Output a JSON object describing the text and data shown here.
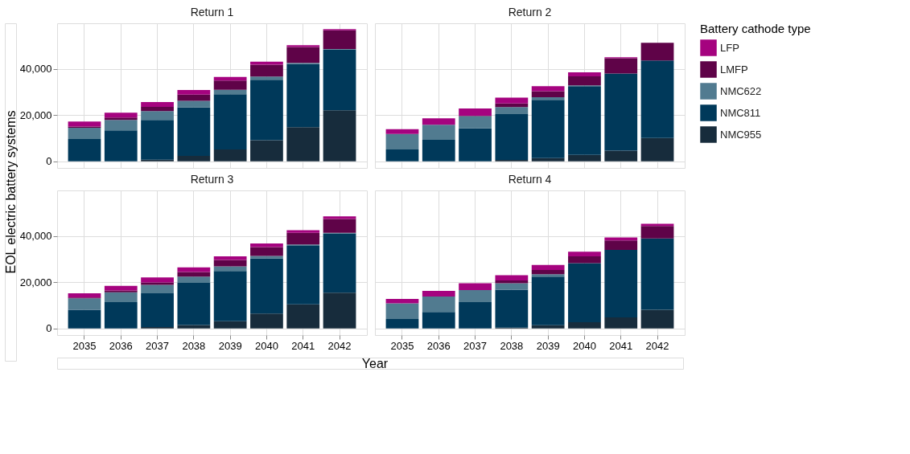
{
  "chart_data": [
    {
      "type": "bar",
      "title": "Return 1",
      "ylabel": "EOL electric battery systems",
      "legend_title": "Battery cathode type",
      "legend": "right",
      "stacked": true,
      "grid": true,
      "tick_labels": "y",
      "categories": [
        "2035",
        "2036",
        "2037",
        "2038",
        "2039",
        "2040",
        "2041",
        "2042"
      ],
      "ylim": [
        -2850,
        59850
      ],
      "yticks": [
        {
          "value": 0,
          "label": "0"
        },
        {
          "value": 20000,
          "label": "20,000"
        },
        {
          "value": 40000,
          "label": "40,000"
        }
      ],
      "series": [
        {
          "name": "NMC955",
          "color": "#172c3c",
          "values": [
            0,
            0,
            700,
            2400,
            5200,
            9200,
            14800,
            22100
          ]
        },
        {
          "name": "NMC811",
          "color": "#00395a",
          "values": [
            9700,
            13400,
            17300,
            21000,
            23900,
            26200,
            27400,
            26300
          ]
        },
        {
          "name": "NMC622",
          "color": "#517b90",
          "values": [
            4900,
            4600,
            3800,
            2800,
            1900,
            1400,
            500,
            300
          ]
        },
        {
          "name": "LMFP",
          "color": "#5f0348",
          "values": [
            500,
            1000,
            1800,
            2700,
            4000,
            5100,
            6900,
            8100
          ]
        },
        {
          "name": "LFP",
          "color": "#a5037f",
          "values": [
            2200,
            2100,
            2100,
            2000,
            1600,
            1300,
            800,
            500
          ]
        }
      ]
    },
    {
      "type": "bar",
      "title": "Return 2",
      "stacked": true,
      "grid": true,
      "tick_labels": false,
      "categories": [
        "2035",
        "2036",
        "2037",
        "2038",
        "2039",
        "2040",
        "2041",
        "2042"
      ],
      "ylim": [
        -2850,
        59850
      ],
      "yticks": [
        {
          "value": 0,
          "label": "0"
        },
        {
          "value": 20000,
          "label": "20,000"
        },
        {
          "value": 40000,
          "label": "40,000"
        }
      ],
      "series": [
        {
          "name": "NMC955",
          "color": "#172c3c",
          "values": [
            0,
            0,
            0,
            600,
            1400,
            2800,
            4600,
            10100
          ]
        },
        {
          "name": "NMC811",
          "color": "#00395a",
          "values": [
            5200,
            9300,
            14300,
            19900,
            25300,
            29800,
            33500,
            33600
          ]
        },
        {
          "name": "NMC622",
          "color": "#517b90",
          "values": [
            6700,
            6600,
            5300,
            3000,
            1100,
            300,
            0,
            0
          ]
        },
        {
          "name": "LMFP",
          "color": "#5f0348",
          "values": [
            0,
            0,
            200,
            1600,
            2600,
            4000,
            6600,
            7700
          ]
        },
        {
          "name": "LFP",
          "color": "#a5037f",
          "values": [
            2100,
            2800,
            3100,
            2500,
            2200,
            1700,
            400,
            0
          ]
        }
      ]
    },
    {
      "type": "bar",
      "title": "Return 3",
      "xlabel": "Year",
      "stacked": true,
      "grid": true,
      "categories": [
        "2035",
        "2036",
        "2037",
        "2038",
        "2039",
        "2040",
        "2041",
        "2042"
      ],
      "ylim": [
        -2850,
        59850
      ],
      "yticks": [
        {
          "value": 0,
          "label": "0"
        },
        {
          "value": 20000,
          "label": "20,000"
        },
        {
          "value": 40000,
          "label": "40,000"
        }
      ],
      "series": [
        {
          "name": "NMC955",
          "color": "#172c3c",
          "values": [
            0,
            0,
            600,
            1500,
            3200,
            6500,
            10500,
            15500
          ]
        },
        {
          "name": "NMC811",
          "color": "#00395a",
          "values": [
            8100,
            11400,
            14700,
            18300,
            21700,
            23800,
            25300,
            25700
          ]
        },
        {
          "name": "NMC622",
          "color": "#517b90",
          "values": [
            5000,
            4300,
            3600,
            2700,
            2000,
            1200,
            600,
            300
          ]
        },
        {
          "name": "LMFP",
          "color": "#5f0348",
          "values": [
            300,
            800,
            1100,
            2000,
            2800,
            3800,
            5100,
            6000
          ]
        },
        {
          "name": "LFP",
          "color": "#a5037f",
          "values": [
            1900,
            2000,
            2100,
            2000,
            1600,
            1600,
            1100,
            1100
          ]
        }
      ]
    },
    {
      "type": "bar",
      "title": "Return 4",
      "stacked": true,
      "grid": true,
      "tick_labels": "x",
      "categories": [
        "2035",
        "2036",
        "2037",
        "2038",
        "2039",
        "2040",
        "2041",
        "2042"
      ],
      "ylim": [
        -2850,
        59850
      ],
      "yticks": [
        {
          "value": 0,
          "label": "0"
        },
        {
          "value": 20000,
          "label": "20,000"
        },
        {
          "value": 40000,
          "label": "40,000"
        }
      ],
      "series": [
        {
          "name": "NMC955",
          "color": "#172c3c",
          "values": [
            0,
            0,
            0,
            400,
            1400,
            2700,
            4800,
            8100
          ]
        },
        {
          "name": "NMC811",
          "color": "#00395a",
          "values": [
            4100,
            7200,
            11400,
            16400,
            21100,
            25600,
            29300,
            30900
          ]
        },
        {
          "name": "NMC622",
          "color": "#517b90",
          "values": [
            6800,
            6700,
            5300,
            2800,
            1000,
            0,
            0,
            0
          ]
        },
        {
          "name": "LMFP",
          "color": "#5f0348",
          "values": [
            0,
            0,
            0,
            1200,
            1900,
            3000,
            4100,
            5400
          ]
        },
        {
          "name": "LFP",
          "color": "#a5037f",
          "values": [
            1900,
            2400,
            2900,
            2300,
            2100,
            2000,
            1300,
            1000
          ]
        }
      ]
    }
  ]
}
